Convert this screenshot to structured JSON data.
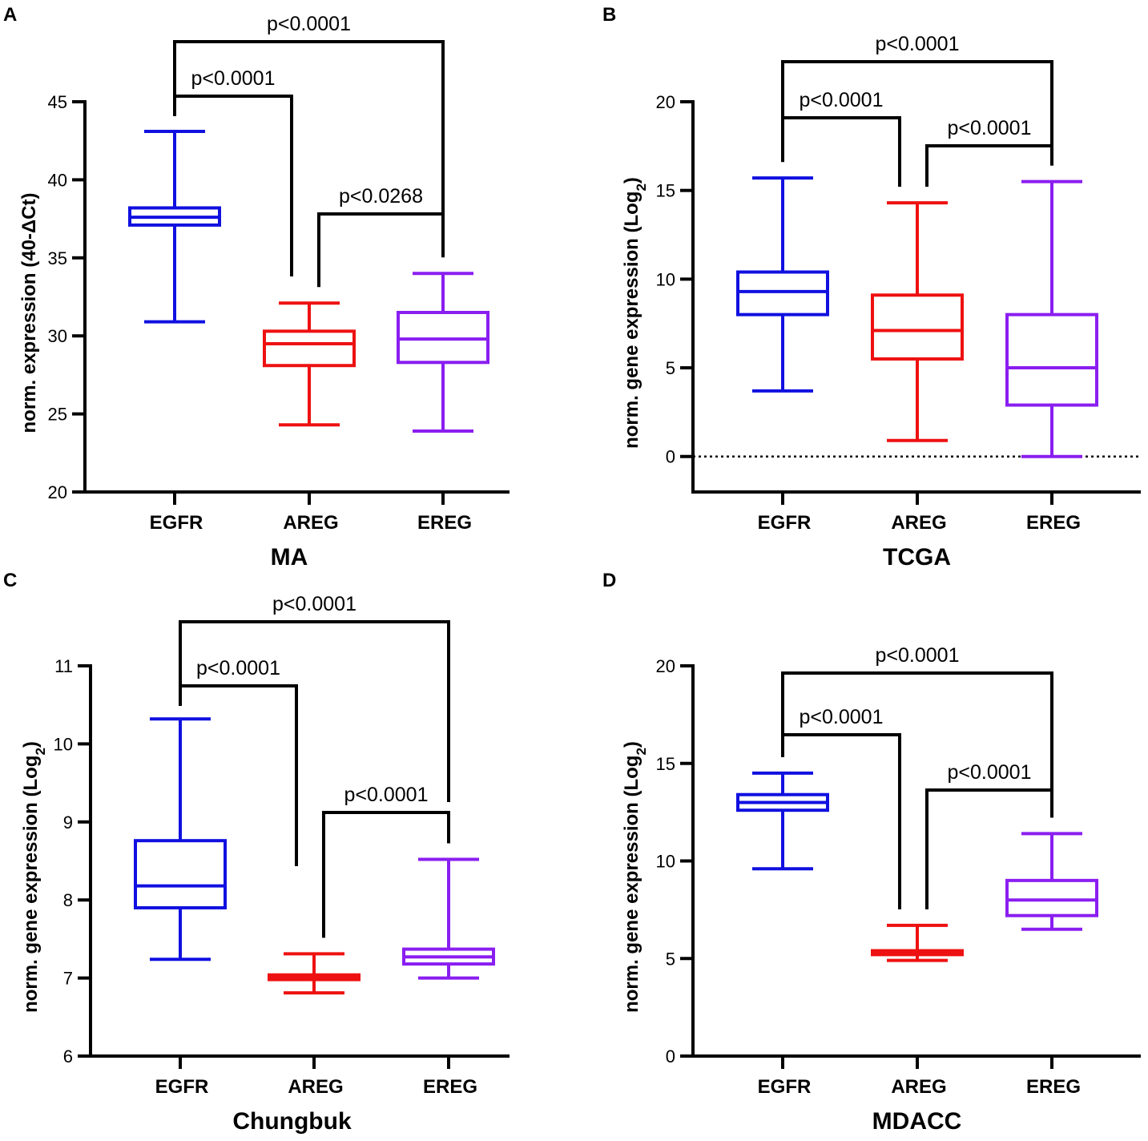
{
  "chart_data": [
    {
      "type": "box",
      "panel": "A",
      "xlabel": "MA",
      "ylabel": "norm. expression (40-ΔCt)",
      "ylabel_sub": "",
      "ylabel_tail": "",
      "ylim": [
        20,
        45
      ],
      "yticks": [
        20,
        25,
        30,
        35,
        40,
        45
      ],
      "zero_line": false,
      "categories": [
        "EGFR",
        "AREG",
        "EREG"
      ],
      "colors": [
        "#1010e0",
        "#ee1111",
        "#8a1ef0"
      ],
      "boxes": [
        {
          "min": 30.9,
          "q1": 37.1,
          "median": 37.6,
          "q3": 38.2,
          "max": 43.1
        },
        {
          "min": 24.3,
          "q1": 28.1,
          "median": 29.5,
          "q3": 30.3,
          "max": 32.1
        },
        {
          "min": 23.9,
          "q1": 28.3,
          "median": 29.8,
          "q3": 31.5,
          "max": 34.0
        }
      ],
      "comparisons": [
        {
          "from": 0,
          "to": 2,
          "label": "p<0.0001",
          "level": 3
        },
        {
          "from": 0,
          "to": 1,
          "label": "p<0.0001",
          "level": 2
        },
        {
          "from": 1,
          "to": 2,
          "label": "p<0.0268",
          "level": 1
        }
      ]
    },
    {
      "type": "box",
      "panel": "B",
      "xlabel": "TCGA",
      "ylabel": "norm. gene expression (Log",
      "ylabel_sub": "2",
      "ylabel_tail": ")",
      "ylim": [
        -2,
        20
      ],
      "yticks": [
        0,
        5,
        10,
        15,
        20
      ],
      "zero_line": true,
      "categories": [
        "EGFR",
        "AREG",
        "EREG"
      ],
      "colors": [
        "#1010e0",
        "#ee1111",
        "#8a1ef0"
      ],
      "boxes": [
        {
          "min": 3.7,
          "q1": 8.0,
          "median": 9.3,
          "q3": 10.4,
          "max": 15.7
        },
        {
          "min": 0.9,
          "q1": 5.5,
          "median": 7.1,
          "q3": 9.1,
          "max": 14.3
        },
        {
          "min": 0.0,
          "q1": 2.9,
          "median": 5.0,
          "q3": 8.0,
          "max": 15.5
        }
      ],
      "comparisons": [
        {
          "from": 0,
          "to": 2,
          "label": "p<0.0001",
          "level": 3
        },
        {
          "from": 0,
          "to": 1,
          "label": "p<0.0001",
          "level": 2
        },
        {
          "from": 1,
          "to": 2,
          "label": "p<0.0001",
          "level": 1
        }
      ]
    },
    {
      "type": "box",
      "panel": "C",
      "xlabel": "Chungbuk",
      "ylabel": "norm. gene expression (Log",
      "ylabel_sub": "2",
      "ylabel_tail": ")",
      "ylim": [
        6,
        11
      ],
      "yticks": [
        6,
        7,
        8,
        9,
        10,
        11
      ],
      "zero_line": false,
      "categories": [
        "EGFR",
        "AREG",
        "EREG"
      ],
      "colors": [
        "#1010e0",
        "#ee1111",
        "#8a1ef0"
      ],
      "boxes": [
        {
          "min": 7.24,
          "q1": 7.9,
          "median": 8.18,
          "q3": 8.76,
          "max": 10.32
        },
        {
          "min": 6.81,
          "q1": 6.98,
          "median": 7.01,
          "q3": 7.04,
          "max": 7.31
        },
        {
          "min": 7.0,
          "q1": 7.18,
          "median": 7.27,
          "q3": 7.37,
          "max": 8.52
        }
      ],
      "comparisons": [
        {
          "from": 0,
          "to": 2,
          "label": "p<0.0001",
          "level": 3
        },
        {
          "from": 0,
          "to": 1,
          "label": "p<0.0001",
          "level": 2
        },
        {
          "from": 1,
          "to": 2,
          "label": "p<0.0001",
          "level": 1
        }
      ]
    },
    {
      "type": "box",
      "panel": "D",
      "xlabel": "MDACC",
      "ylabel": "norm. gene expression (Log",
      "ylabel_sub": "2",
      "ylabel_tail": ")",
      "ylim": [
        0,
        20
      ],
      "yticks": [
        0,
        5,
        10,
        15,
        20
      ],
      "zero_line": false,
      "categories": [
        "EGFR",
        "AREG",
        "EREG"
      ],
      "colors": [
        "#1010e0",
        "#ee1111",
        "#8a1ef0"
      ],
      "boxes": [
        {
          "min": 9.6,
          "q1": 12.6,
          "median": 13.0,
          "q3": 13.4,
          "max": 14.5
        },
        {
          "min": 4.9,
          "q1": 5.2,
          "median": 5.3,
          "q3": 5.4,
          "max": 6.7
        },
        {
          "min": 6.5,
          "q1": 7.2,
          "median": 8.0,
          "q3": 9.0,
          "max": 11.4
        }
      ],
      "comparisons": [
        {
          "from": 0,
          "to": 2,
          "label": "p<0.0001",
          "level": 3
        },
        {
          "from": 0,
          "to": 1,
          "label": "p<0.0001",
          "level": 2
        },
        {
          "from": 1,
          "to": 2,
          "label": "p<0.0001",
          "level": 1
        }
      ]
    }
  ]
}
